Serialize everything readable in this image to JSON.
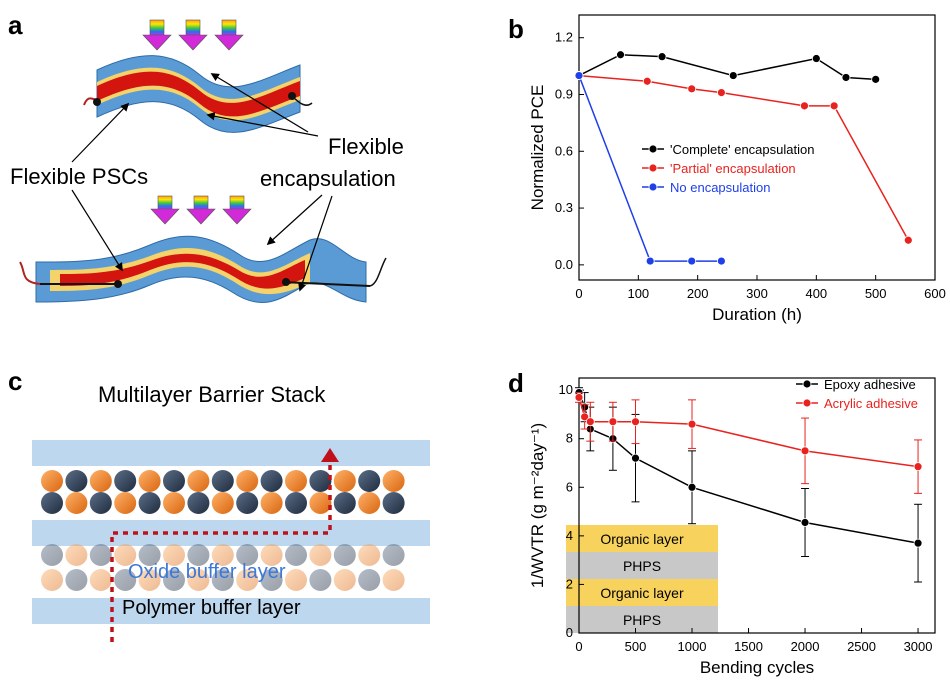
{
  "panels": {
    "a": {
      "letter": "a",
      "label_psc": "Flexible PSCs",
      "label_enc_1": "Flexible",
      "label_enc_2": "encapsulation"
    },
    "b": {
      "letter": "b"
    },
    "c": {
      "letter": "c",
      "title": "Multilayer Barrier Stack",
      "oxide_label": "Oxide buffer layer",
      "polymer_label": "Polymer buffer layer"
    },
    "d": {
      "letter": "d",
      "inset_layers": [
        "Organic layer",
        "PHPS",
        "Organic layer",
        "PHPS"
      ]
    }
  },
  "colors": {
    "black": "#000000",
    "red": "#e8231f",
    "blue": "#1f3fe8",
    "barrier": "#bdd7ee",
    "oxide_orange": "#f0832a",
    "oxide_navy": "#34455c",
    "organic": "#f7d25d",
    "phps": "#c8c8c8",
    "psc_red": "#d4140e",
    "film_blue": "#5b9bd5"
  },
  "chart_data": [
    {
      "type": "line",
      "xlabel": "Duration (h)",
      "ylabel": "Normalized PCE",
      "xlim": [
        0,
        600
      ],
      "ylim": [
        -0.08,
        1.32
      ],
      "xticks": [
        0,
        100,
        200,
        300,
        400,
        500,
        600
      ],
      "yticks": [
        0.0,
        0.3,
        0.6,
        0.9,
        1.2
      ],
      "ytick_labels": [
        "0.0",
        "0.3",
        "0.6",
        "0.9",
        "1.2"
      ],
      "legend_position": "center-right",
      "series": [
        {
          "name": "'Complete' encapsulation",
          "color": "#000000",
          "x": [
            0,
            70,
            140,
            260,
            400,
            450,
            500
          ],
          "y": [
            1.0,
            1.11,
            1.1,
            1.0,
            1.09,
            0.99,
            0.98
          ]
        },
        {
          "name": "'Partial' encapsulation",
          "color": "#e8231f",
          "x": [
            0,
            115,
            190,
            240,
            380,
            430,
            555
          ],
          "y": [
            1.0,
            0.97,
            0.93,
            0.91,
            0.84,
            0.84,
            0.13
          ]
        },
        {
          "name": "No encapsulation",
          "color": "#1f3fe8",
          "x": [
            0,
            120,
            190,
            240
          ],
          "y": [
            1.0,
            0.02,
            0.02,
            0.02
          ]
        }
      ]
    },
    {
      "type": "line",
      "xlabel": "Bending cycles",
      "ylabel": "1/WVTR (g m⁻²day⁻¹)",
      "xlim": [
        0,
        3150
      ],
      "ylim": [
        0,
        10.5
      ],
      "xticks": [
        0,
        500,
        1000,
        1500,
        2000,
        2500,
        3000
      ],
      "yticks": [
        0,
        2,
        4,
        6,
        8,
        10
      ],
      "ytick_labels": [
        "0",
        "2",
        "4",
        "6",
        "8",
        "10"
      ],
      "legend_position": "top-right",
      "series": [
        {
          "name": "Epoxy adhesive",
          "color": "#000000",
          "x": [
            0,
            50,
            100,
            300,
            500,
            1000,
            2000,
            3000
          ],
          "y": [
            9.9,
            9.3,
            8.4,
            8.0,
            7.2,
            6.0,
            4.55,
            3.7
          ],
          "err": [
            0.2,
            0.6,
            0.9,
            1.3,
            1.8,
            1.5,
            1.4,
            1.6
          ]
        },
        {
          "name": "Acrylic adhesive",
          "color": "#e8231f",
          "x": [
            0,
            50,
            100,
            300,
            500,
            1000,
            2000,
            3000
          ],
          "y": [
            9.7,
            8.9,
            8.7,
            8.7,
            8.7,
            8.6,
            7.5,
            6.85
          ],
          "err": [
            0.2,
            0.5,
            0.8,
            0.8,
            0.9,
            1.0,
            1.35,
            1.1
          ]
        }
      ]
    }
  ]
}
